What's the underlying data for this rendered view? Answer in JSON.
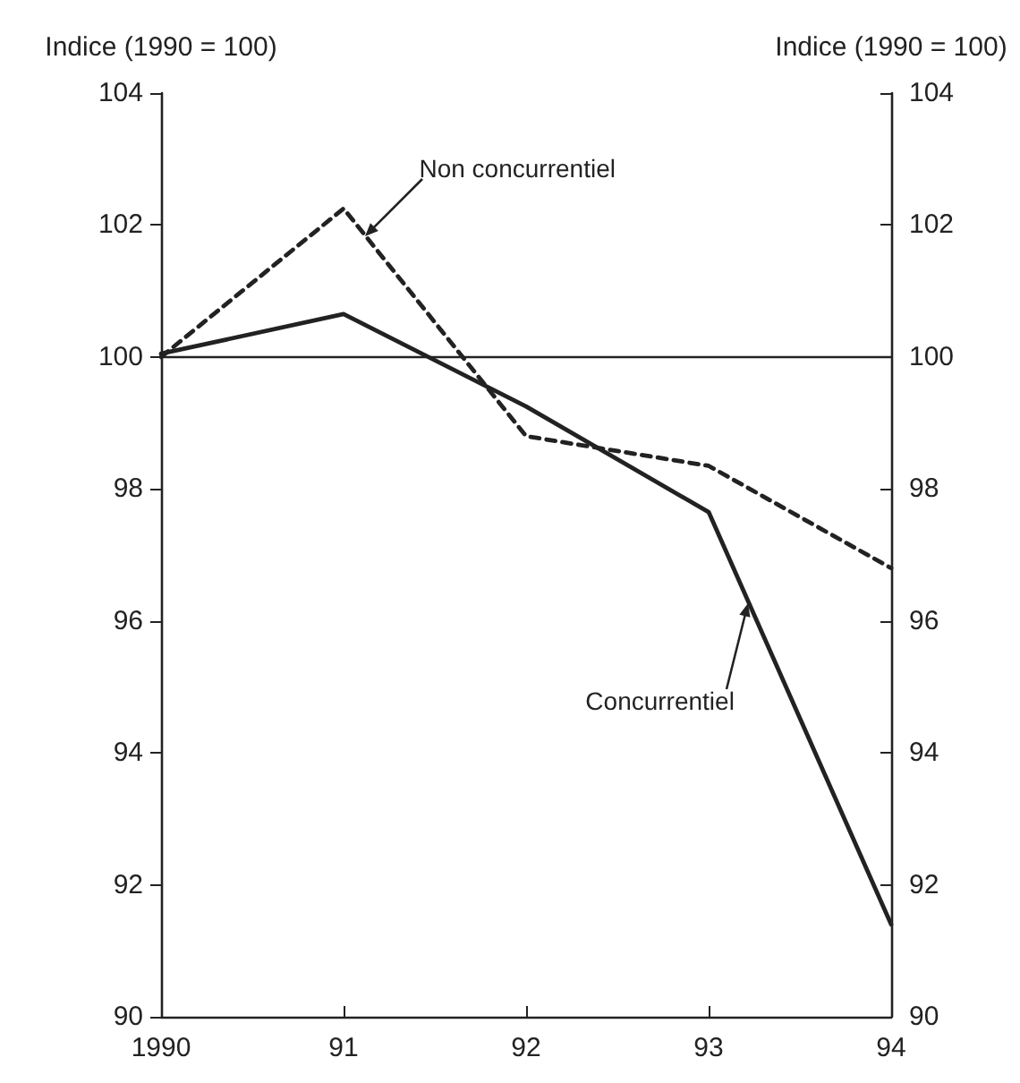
{
  "chart_data": {
    "type": "line",
    "ylabel": "Indice (1990 = 100)",
    "y2label": "Indice (1990 = 100)",
    "x": [
      1990,
      1991,
      1992,
      1993,
      1994
    ],
    "series": [
      {
        "name": "Concurrentiel",
        "color": "#222222",
        "line_style": "solid",
        "values": [
          100.05,
          100.65,
          99.25,
          97.65,
          91.4
        ]
      },
      {
        "name": "Non concurrentiel",
        "color": "#222222",
        "line_style": "dashed",
        "values": [
          100,
          102.25,
          98.8,
          98.35,
          96.8
        ]
      }
    ],
    "xlim": [
      1990,
      1994
    ],
    "xticks": [
      {
        "value": 1990,
        "label": "1990"
      },
      {
        "value": 1991,
        "label": "91"
      },
      {
        "value": 1992,
        "label": "92"
      },
      {
        "value": 1993,
        "label": "93"
      },
      {
        "value": 1994,
        "label": "94"
      }
    ],
    "ylim": [
      90,
      104
    ],
    "yticks": [
      90,
      92,
      94,
      96,
      98,
      100,
      102,
      104
    ],
    "y2lim": [
      90,
      104
    ],
    "y2ticks": [
      90,
      92,
      94,
      96,
      98,
      100,
      102,
      104
    ],
    "ref_lines": [
      {
        "axis": "y",
        "value": 100,
        "color": "#222222",
        "line_style": "solid"
      }
    ],
    "marker": "none",
    "grid": false,
    "legend": false
  }
}
